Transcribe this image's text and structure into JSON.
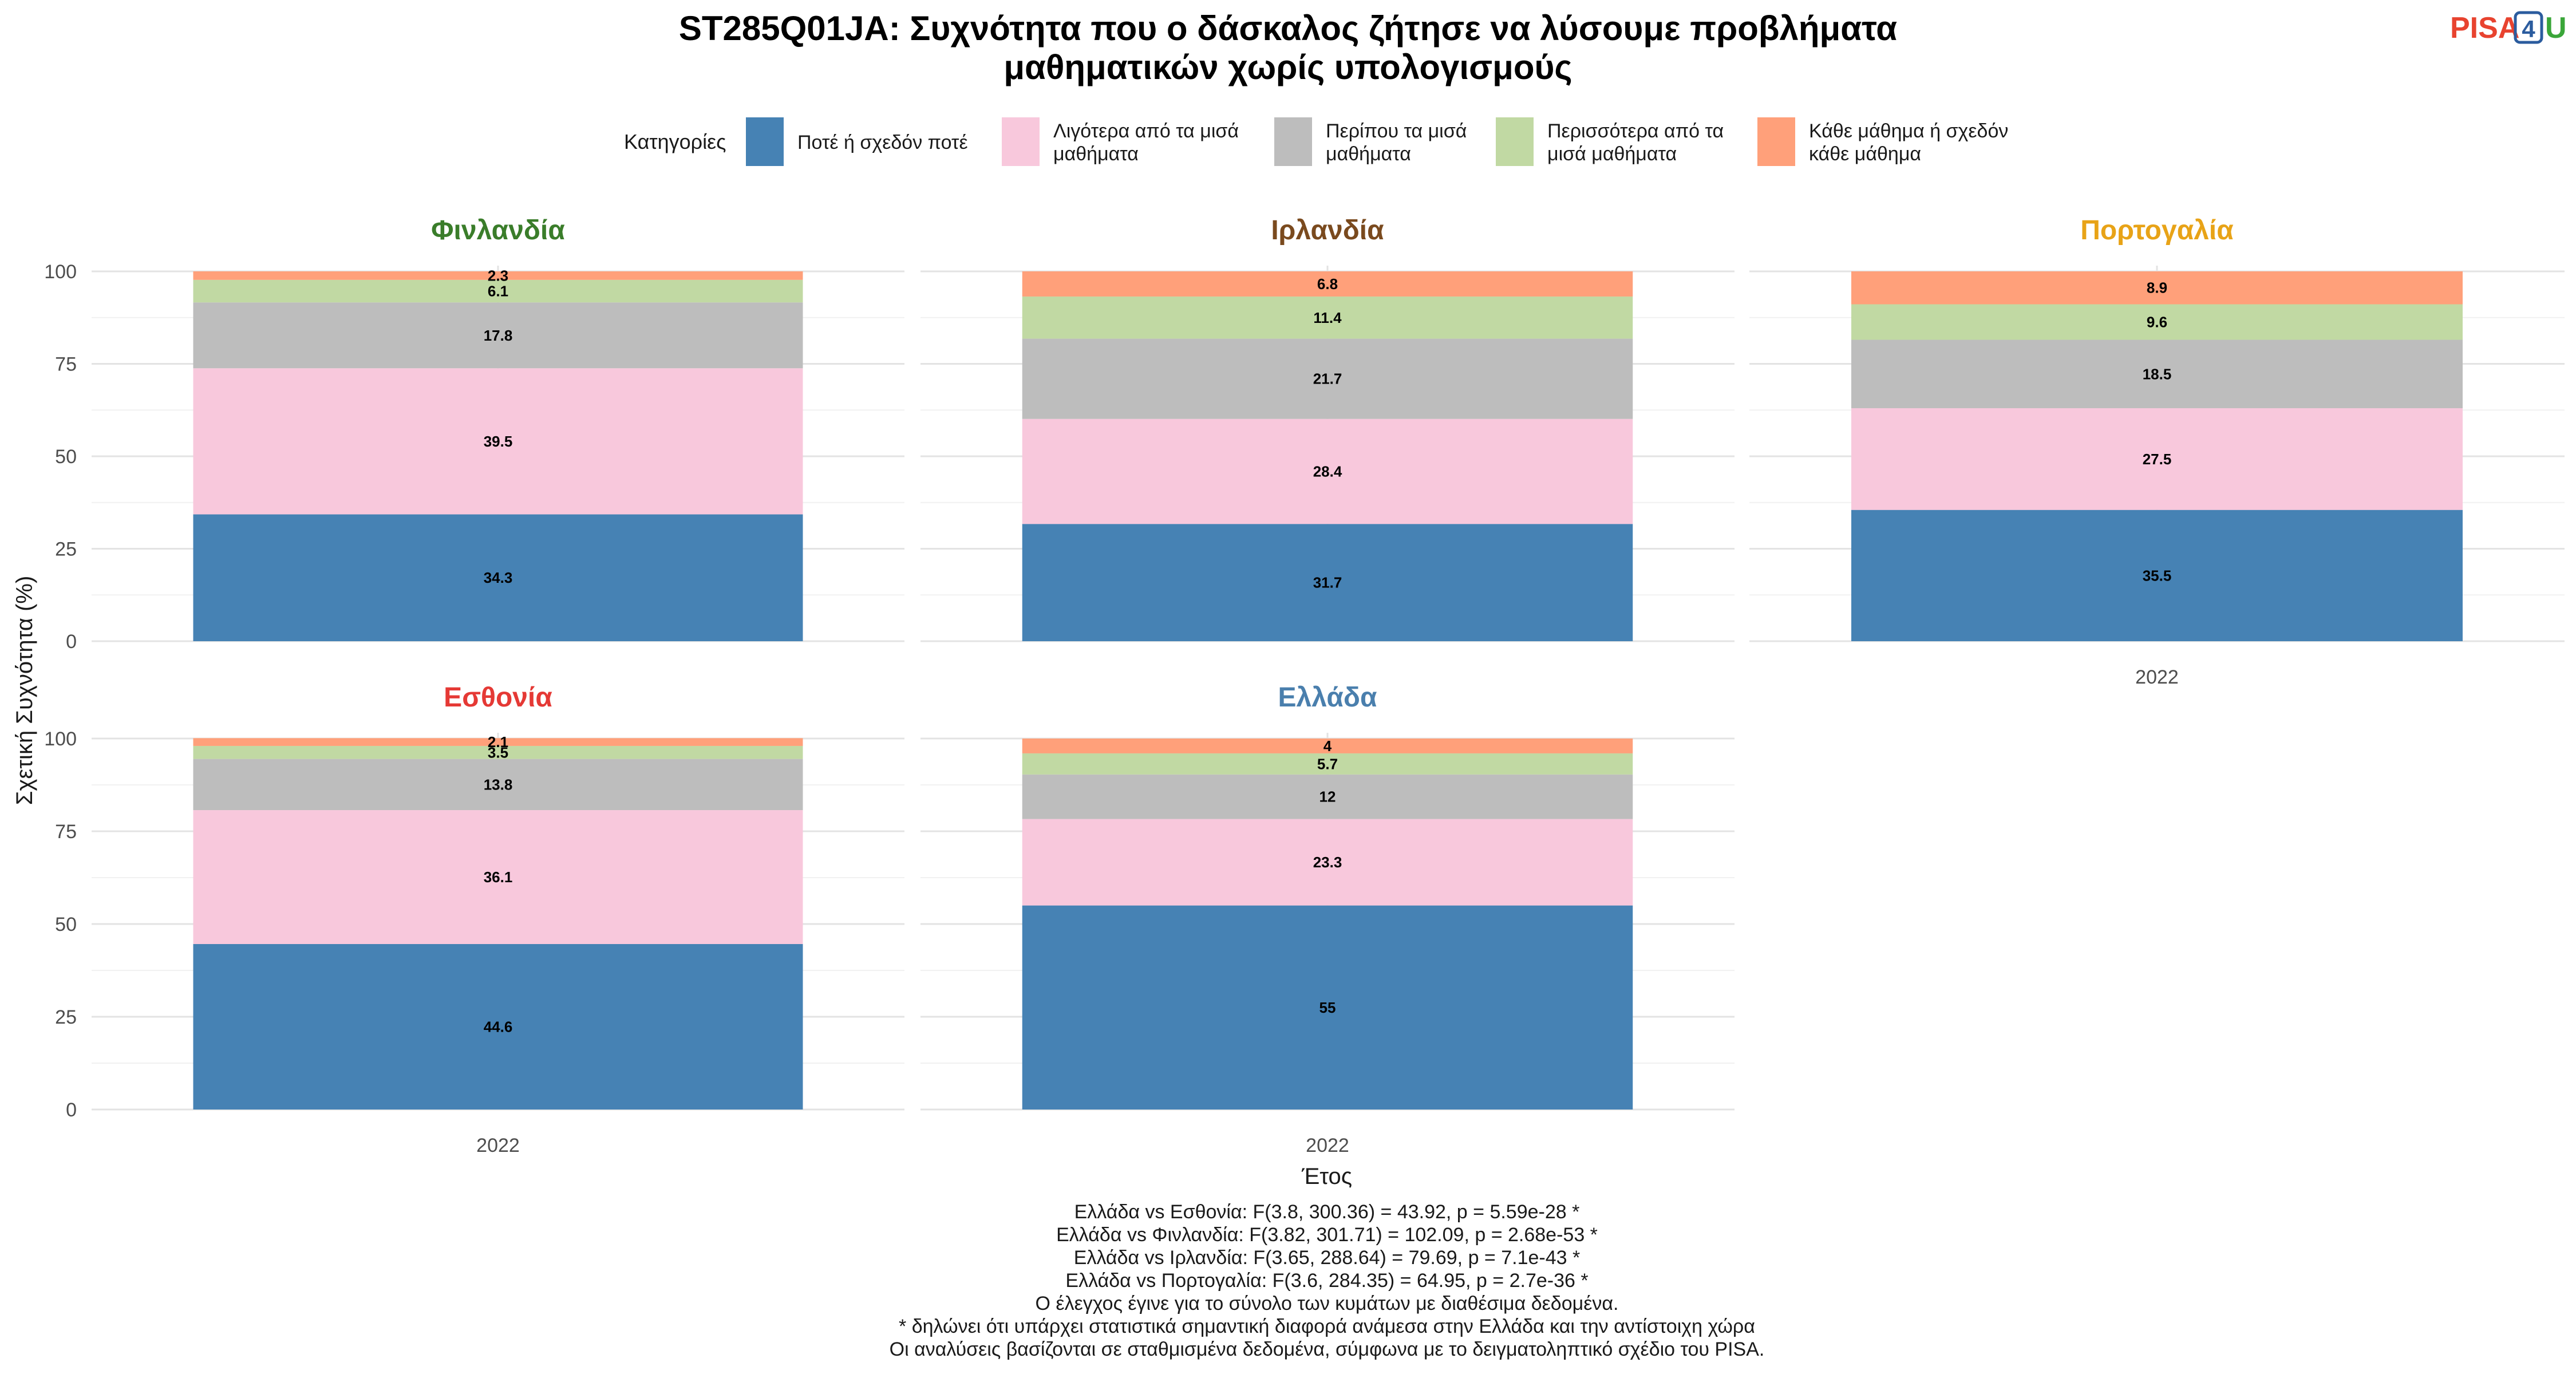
{
  "title_lines": [
    "ST285Q01JA: Συχνότητα που ο δάσκαλος ζήτησε να λύσουμε προβλήματα",
    "μαθηματικών χωρίς υπολογισμούς"
  ],
  "logo": {
    "text_left": "PISA",
    "text_box": "4",
    "text_right": "U",
    "colors": {
      "left": "#e8432f",
      "box": "#2b5c9e",
      "right": "#3aa639"
    }
  },
  "legend": {
    "title": "Κατηγορίες",
    "items": [
      {
        "label_lines": [
          "Ποτέ ή σχεδόν ποτέ"
        ],
        "color": "#4682b4"
      },
      {
        "label_lines": [
          "Λιγότερα από τα μισά",
          "μαθήματα"
        ],
        "color": "#f8c8dc"
      },
      {
        "label_lines": [
          "Περίπου τα μισά",
          "μαθήματα"
        ],
        "color": "#bdbdbd"
      },
      {
        "label_lines": [
          "Περισσότερα από τα",
          "μισά μαθήματα"
        ],
        "color": "#c1d9a3"
      },
      {
        "label_lines": [
          "Κάθε μάθημα ή σχεδόν",
          "κάθε μάθημα"
        ],
        "color": "#ffa07a"
      }
    ]
  },
  "chart_data": {
    "type": "bar",
    "stacked": true,
    "x": [
      "2022"
    ],
    "xlabel": "Έτος",
    "ylabel": "Σχετική Συχνότητα (%)",
    "ylim": [
      0,
      100
    ],
    "yticks": [
      0,
      25,
      50,
      75,
      100
    ],
    "grid": true,
    "legend_position": "top",
    "series_names": [
      "Ποτέ ή σχεδόν ποτέ",
      "Λιγότερα από τα μισά μαθήματα",
      "Περίπου τα μισά μαθήματα",
      "Περισσότερα από τα μισά μαθήματα",
      "Κάθε μάθημα ή σχεδόν κάθε μάθημα"
    ],
    "panels": [
      {
        "name": "Φινλανδία",
        "title_color": "#3a7d2a",
        "values": [
          34.3,
          39.5,
          17.8,
          6.1,
          2.3
        ],
        "labels": [
          "34.3",
          "39.5",
          "17.8",
          "6.1",
          "2.3"
        ]
      },
      {
        "name": "Ιρλανδία",
        "title_color": "#7a4a1e",
        "values": [
          31.7,
          28.4,
          21.7,
          11.4,
          6.8
        ],
        "labels": [
          "31.7",
          "28.4",
          "21.7",
          "11.4",
          "6.8"
        ]
      },
      {
        "name": "Πορτογαλία",
        "title_color": "#e8a317",
        "values": [
          35.5,
          27.5,
          18.5,
          9.6,
          8.9
        ],
        "labels": [
          "35.5",
          "27.5",
          "18.5",
          "9.6",
          "8.9"
        ]
      },
      {
        "name": "Εσθονία",
        "title_color": "#e53935",
        "values": [
          44.6,
          36.1,
          13.8,
          3.5,
          2.1
        ],
        "labels": [
          "44.6",
          "36.1",
          "13.8",
          "3.5",
          "2.1"
        ]
      },
      {
        "name": "Ελλάδα",
        "title_color": "#4a7fad",
        "values": [
          55,
          23.3,
          12,
          5.7,
          4
        ],
        "labels": [
          "55",
          "23.3",
          "12",
          "5.7",
          "4"
        ]
      }
    ]
  },
  "footnotes": [
    "Ελλάδα vs Εσθονία: F(3.8, 300.36) = 43.92, p = 5.59e-28 *",
    "Ελλάδα vs Φινλανδία: F(3.82, 301.71) = 102.09, p = 2.68e-53 *",
    "Ελλάδα vs Ιρλανδία: F(3.65, 288.64) = 79.69, p = 7.1e-43 *",
    "Ελλάδα vs Πορτογαλία: F(3.6, 284.35) = 64.95, p = 2.7e-36 *",
    "Ο έλεγχος έγινε για το σύνολο των κυμάτων με διαθέσιμα δεδομένα.",
    "* δηλώνει ότι υπάρχει στατιστικά σημαντική διαφορά ανάμεσα στην Ελλάδα και την αντίστοιχη χώρα",
    "Οι αναλύσεις βασίζονται σε σταθμισμένα δεδομένα, σύμφωνα με το δειγματοληπτικό σχέδιο του PISA."
  ]
}
